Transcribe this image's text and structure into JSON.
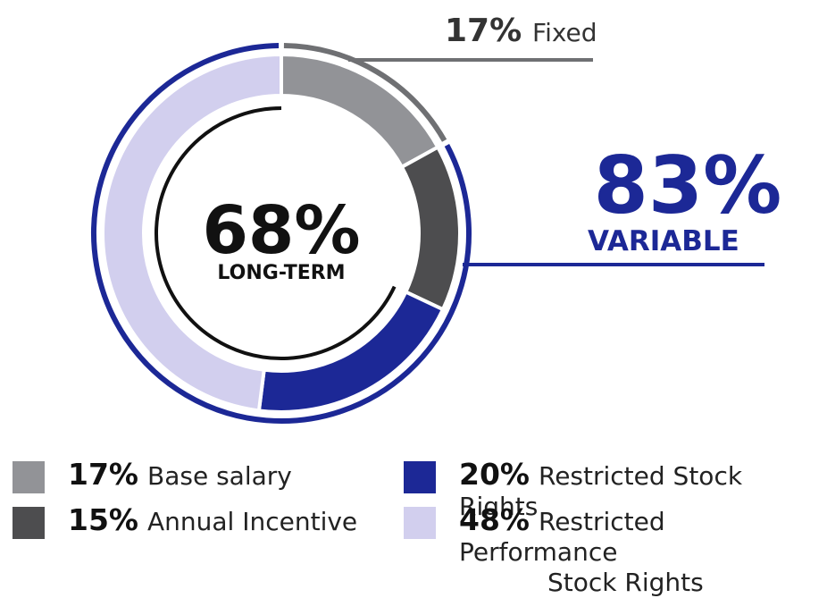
{
  "chart_data": {
    "type": "donut",
    "center": {
      "value": "68%",
      "label": "LONG-TERM"
    },
    "segments": [
      {
        "name": "Base salary",
        "pct_label": "17%",
        "value": 17,
        "color": "#929397"
      },
      {
        "name": "Annual Incentive",
        "pct_label": "15%",
        "value": 15,
        "color": "#4d4d4f"
      },
      {
        "name": "Restricted Stock Rights",
        "pct_label": "20%",
        "value": 20,
        "color": "#1c2896"
      },
      {
        "name": "Restricted Performance Stock Rights",
        "pct_label": "48%",
        "value": 48,
        "color": "#d2cfee"
      }
    ],
    "outer_arcs": [
      {
        "name": "Fixed",
        "pct_label": "17%",
        "value": 17,
        "color": "#6f7073"
      },
      {
        "name": "VARIABLE",
        "pct_label": "83%",
        "value": 83,
        "color": "#1c2896"
      }
    ],
    "long_term_arc": {
      "value": 68,
      "color": "#111111"
    }
  },
  "callouts": {
    "fixed": {
      "pct": "17%",
      "label": "Fixed"
    },
    "variable": {
      "pct": "83%",
      "label": "VARIABLE"
    }
  },
  "legend": [
    {
      "pct": "17%",
      "label_lines": [
        "Base salary"
      ],
      "color": "#929397"
    },
    {
      "pct": "15%",
      "label_lines": [
        "Annual Incentive"
      ],
      "color": "#4d4d4f"
    },
    {
      "pct": "20%",
      "label_lines": [
        "Restricted Stock Rights"
      ],
      "color": "#1c2896"
    },
    {
      "pct": "48%",
      "label_lines": [
        "Restricted Performance",
        "Stock Rights"
      ],
      "color": "#d2cfee"
    }
  ]
}
